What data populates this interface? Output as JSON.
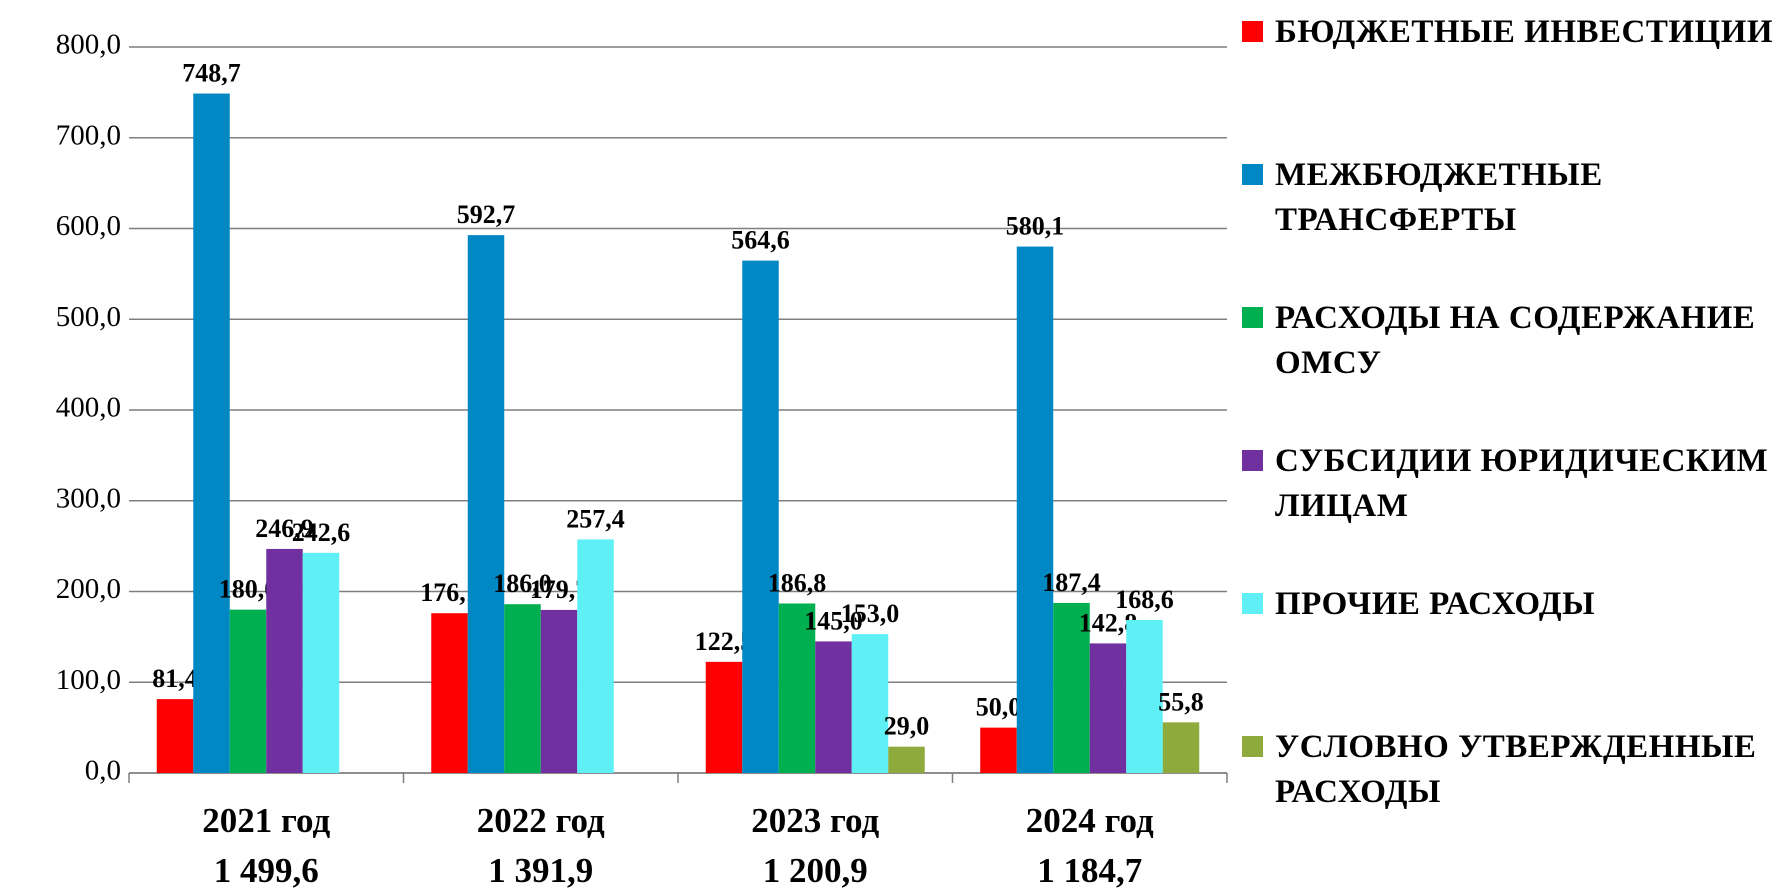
{
  "chart_data": {
    "type": "bar",
    "categories": [
      "2021 год",
      "2022 год",
      "2023 год",
      "2024 год"
    ],
    "totals": [
      {
        "value": 1499.6,
        "label": "1 499,6"
      },
      {
        "value": 1391.9,
        "label": "1 391,9"
      },
      {
        "value": 1200.9,
        "label": "1 200,9"
      },
      {
        "value": 1184.7,
        "label": "1 184,7"
      }
    ],
    "series": [
      {
        "name": "БЮДЖЕТНЫЕ ИНВЕСТИЦИИ",
        "color": "#ff0000",
        "values": [
          81.4,
          176.1,
          122.5,
          50.0
        ],
        "value_labels": [
          "81,4",
          "176,1",
          "122,5",
          "50,0"
        ]
      },
      {
        "name": "МЕЖБЮДЖЕТНЫЕ ТРАНСФЕРТЫ",
        "color": "#0088c4",
        "values": [
          748.7,
          592.7,
          564.6,
          580.1
        ],
        "value_labels": [
          "748,7",
          "592,7",
          "564,6",
          "580,1"
        ]
      },
      {
        "name": "РАСХОДЫ НА СОДЕРЖАНИЕ ОМСУ",
        "color": "#00b050",
        "values": [
          180.0,
          186.0,
          186.8,
          187.4
        ],
        "value_labels": [
          "180,0",
          "186,0",
          "186,8",
          "187,4"
        ]
      },
      {
        "name": "СУБСИДИИ ЮРИДИЧЕСКИМ ЛИЦАМ",
        "color": "#7030a0",
        "values": [
          246.9,
          179.7,
          145.0,
          142.8
        ],
        "value_labels": [
          "246,9",
          "179,7",
          "145,0",
          "142,8"
        ]
      },
      {
        "name": "ПРОЧИЕ РАСХОДЫ",
        "color": "#5ff0f5",
        "values": [
          242.6,
          257.4,
          153.0,
          168.6
        ],
        "value_labels": [
          "242,6",
          "257,4",
          "153,0",
          "168,6"
        ]
      },
      {
        "name": "УСЛОВНО УТВЕРЖДЕННЫЕ РАСХОДЫ",
        "color": "#8faa3c",
        "values": [
          null,
          null,
          29.0,
          55.8
        ],
        "value_labels": [
          null,
          null,
          "29,0",
          "55,8"
        ]
      }
    ],
    "ylim": [
      0,
      800
    ],
    "yticks": [
      {
        "value": 0,
        "label": "0,0"
      },
      {
        "value": 100,
        "label": "100,0"
      },
      {
        "value": 200,
        "label": "200,0"
      },
      {
        "value": 300,
        "label": "300,0"
      },
      {
        "value": 400,
        "label": "400,0"
      },
      {
        "value": 500,
        "label": "500,0"
      },
      {
        "value": 600,
        "label": "600,0"
      },
      {
        "value": 700,
        "label": "700,0"
      },
      {
        "value": 800,
        "label": "800,0"
      }
    ],
    "grid": true,
    "legend": "right"
  }
}
